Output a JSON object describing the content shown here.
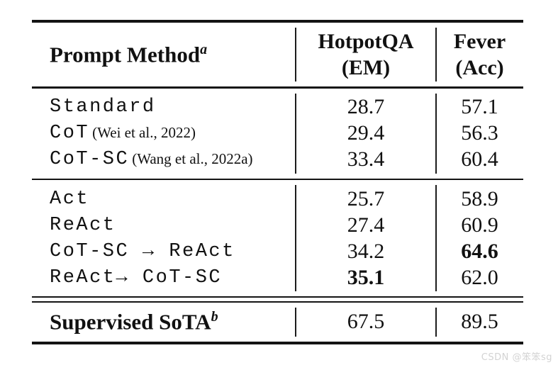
{
  "table": {
    "header": {
      "method_label": "Prompt Method",
      "method_sup": "a",
      "col2_line1": "HotpotQA",
      "col2_line2": "(EM)",
      "col3_line1": "Fever",
      "col3_line2": "(Acc)"
    },
    "rows": [
      {
        "method": "Standard",
        "citation": "",
        "em": "28.7",
        "acc": "57.1",
        "em_bold": false,
        "acc_bold": false
      },
      {
        "method": "CoT",
        "citation": "(Wei et al., 2022)",
        "em": "29.4",
        "acc": "56.3",
        "em_bold": false,
        "acc_bold": false
      },
      {
        "method": "CoT-SC",
        "citation": "(Wang et al., 2022a)",
        "em": "33.4",
        "acc": "60.4",
        "em_bold": false,
        "acc_bold": false
      },
      {
        "method": "Act",
        "citation": "",
        "em": "25.7",
        "acc": "58.9",
        "em_bold": false,
        "acc_bold": false
      },
      {
        "method": "ReAct",
        "citation": "",
        "em": "27.4",
        "acc": "60.9",
        "em_bold": false,
        "acc_bold": false
      },
      {
        "method": "CoT-SC → ReAct",
        "citation": "",
        "em": "34.2",
        "acc": "64.6",
        "em_bold": false,
        "acc_bold": true
      },
      {
        "method": "ReAct→ CoT-SC",
        "citation": "",
        "em": "35.1",
        "acc": "62.0",
        "em_bold": true,
        "acc_bold": false
      }
    ],
    "footer": {
      "label": "Supervised SoTA",
      "sup": "b",
      "em": "67.5",
      "acc": "89.5"
    }
  },
  "watermark": "CSDN @笨笨sg",
  "colors": {
    "text": "#111111",
    "rule": "#141414",
    "watermark": "#d3d3d3",
    "background": "#ffffff"
  },
  "chart_data": {
    "type": "table",
    "title": "Prompt Method results on HotpotQA (EM) and Fever (Acc)",
    "columns": [
      "Prompt Method",
      "HotpotQA (EM)",
      "Fever (Acc)"
    ],
    "rows": [
      [
        "Standard",
        28.7,
        57.1
      ],
      [
        "CoT (Wei et al., 2022)",
        29.4,
        56.3
      ],
      [
        "CoT-SC (Wang et al., 2022a)",
        33.4,
        60.4
      ],
      [
        "Act",
        25.7,
        58.9
      ],
      [
        "ReAct",
        27.4,
        60.9
      ],
      [
        "CoT-SC → ReAct",
        34.2,
        64.6
      ],
      [
        "ReAct→ CoT-SC",
        35.1,
        62.0
      ],
      [
        "Supervised SoTA",
        67.5,
        89.5
      ]
    ]
  }
}
